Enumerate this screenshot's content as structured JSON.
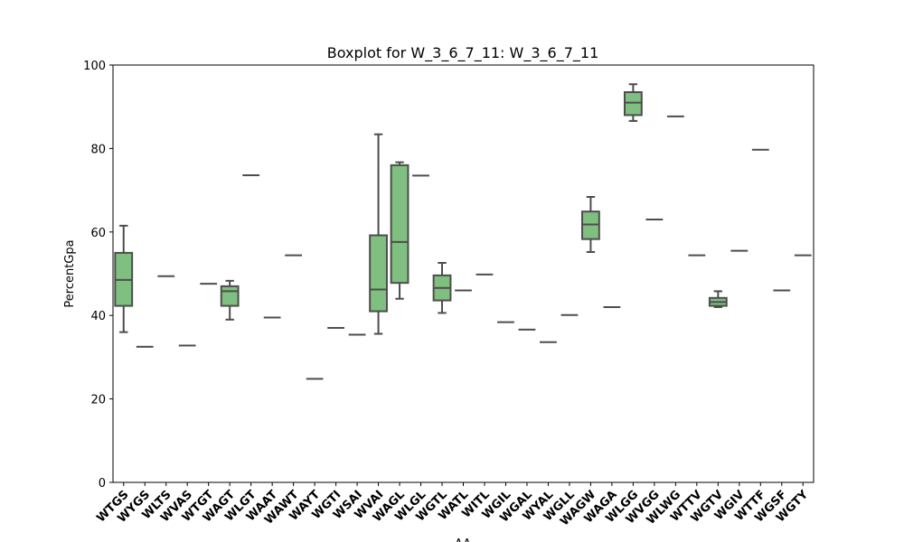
{
  "chart_data": {
    "type": "box",
    "title": "Boxplot for W_3_6_7_11: W_3_6_7_11",
    "xlabel": "AA",
    "ylabel": "PercentGpa",
    "ylim": [
      0,
      100
    ],
    "yticks": [
      "0",
      "20",
      "40",
      "60",
      "80",
      "100"
    ],
    "grid": false,
    "box_color": "#7fbf7f",
    "line_color": "#4d4d4d",
    "categories": [
      "WTGS",
      "WYGS",
      "WLTS",
      "WVAS",
      "WTGT",
      "WAGT",
      "WLGT",
      "WAAT",
      "WAWT",
      "WAYT",
      "WGTI",
      "WSAI",
      "WVAI",
      "WAGL",
      "WLGL",
      "WGTL",
      "WATL",
      "WITL",
      "WGIL",
      "WGAL",
      "WYAL",
      "WGLL",
      "WAGW",
      "WAGA",
      "WLGG",
      "WVGG",
      "WLWG",
      "WTTV",
      "WGTV",
      "WGIV",
      "WTTF",
      "WGSF",
      "WGTY"
    ],
    "boxes": [
      {
        "min": 36.0,
        "q1": 42.3,
        "median": 48.5,
        "q3": 55.0,
        "max": 61.5
      },
      {
        "min": 32.5,
        "q1": 32.5,
        "median": 32.5,
        "q3": 32.5,
        "max": 32.5
      },
      {
        "min": 49.4,
        "q1": 49.4,
        "median": 49.4,
        "q3": 49.4,
        "max": 49.4
      },
      {
        "min": 32.8,
        "q1": 32.8,
        "median": 32.8,
        "q3": 32.8,
        "max": 32.8
      },
      {
        "min": 47.6,
        "q1": 47.6,
        "median": 47.6,
        "q3": 47.6,
        "max": 47.6
      },
      {
        "min": 39.0,
        "q1": 42.3,
        "median": 45.8,
        "q3": 47.0,
        "max": 48.3
      },
      {
        "min": 73.6,
        "q1": 73.6,
        "median": 73.6,
        "q3": 73.6,
        "max": 73.6
      },
      {
        "min": 39.5,
        "q1": 39.5,
        "median": 39.5,
        "q3": 39.5,
        "max": 39.5
      },
      {
        "min": 54.4,
        "q1": 54.4,
        "median": 54.4,
        "q3": 54.4,
        "max": 54.4
      },
      {
        "min": 24.8,
        "q1": 24.8,
        "median": 24.8,
        "q3": 24.8,
        "max": 24.8
      },
      {
        "min": 37.0,
        "q1": 37.0,
        "median": 37.0,
        "q3": 37.0,
        "max": 37.0
      },
      {
        "min": 35.4,
        "q1": 35.4,
        "median": 35.4,
        "q3": 35.4,
        "max": 35.4
      },
      {
        "min": 35.6,
        "q1": 41.0,
        "median": 46.2,
        "q3": 59.2,
        "max": 83.4
      },
      {
        "min": 44.0,
        "q1": 47.8,
        "median": 57.6,
        "q3": 76.0,
        "max": 76.7
      },
      {
        "min": 73.5,
        "q1": 73.5,
        "median": 73.5,
        "q3": 73.5,
        "max": 73.5
      },
      {
        "min": 40.6,
        "q1": 43.6,
        "median": 46.6,
        "q3": 49.6,
        "max": 52.6
      },
      {
        "min": 46.0,
        "q1": 46.0,
        "median": 46.0,
        "q3": 46.0,
        "max": 46.0
      },
      {
        "min": 49.8,
        "q1": 49.8,
        "median": 49.8,
        "q3": 49.8,
        "max": 49.8
      },
      {
        "min": 38.4,
        "q1": 38.4,
        "median": 38.4,
        "q3": 38.4,
        "max": 38.4
      },
      {
        "min": 36.6,
        "q1": 36.6,
        "median": 36.6,
        "q3": 36.6,
        "max": 36.6
      },
      {
        "min": 33.6,
        "q1": 33.6,
        "median": 33.6,
        "q3": 33.6,
        "max": 33.6
      },
      {
        "min": 40.1,
        "q1": 40.1,
        "median": 40.1,
        "q3": 40.1,
        "max": 40.1
      },
      {
        "min": 55.2,
        "q1": 58.3,
        "median": 61.8,
        "q3": 64.9,
        "max": 68.4
      },
      {
        "min": 42.0,
        "q1": 42.0,
        "median": 42.0,
        "q3": 42.0,
        "max": 42.0
      },
      {
        "min": 86.6,
        "q1": 88.0,
        "median": 91.0,
        "q3": 93.5,
        "max": 95.4
      },
      {
        "min": 63.0,
        "q1": 63.0,
        "median": 63.0,
        "q3": 63.0,
        "max": 63.0
      },
      {
        "min": 87.7,
        "q1": 87.7,
        "median": 87.7,
        "q3": 87.7,
        "max": 87.7
      },
      {
        "min": 54.4,
        "q1": 54.4,
        "median": 54.4,
        "q3": 54.4,
        "max": 54.4
      },
      {
        "min": 42.0,
        "q1": 42.3,
        "median": 43.2,
        "q3": 44.2,
        "max": 45.8
      },
      {
        "min": 55.5,
        "q1": 55.5,
        "median": 55.5,
        "q3": 55.5,
        "max": 55.5
      },
      {
        "min": 79.7,
        "q1": 79.7,
        "median": 79.7,
        "q3": 79.7,
        "max": 79.7
      },
      {
        "min": 46.0,
        "q1": 46.0,
        "median": 46.0,
        "q3": 46.0,
        "max": 46.0
      },
      {
        "min": 54.4,
        "q1": 54.4,
        "median": 54.4,
        "q3": 54.4,
        "max": 54.4
      }
    ]
  }
}
